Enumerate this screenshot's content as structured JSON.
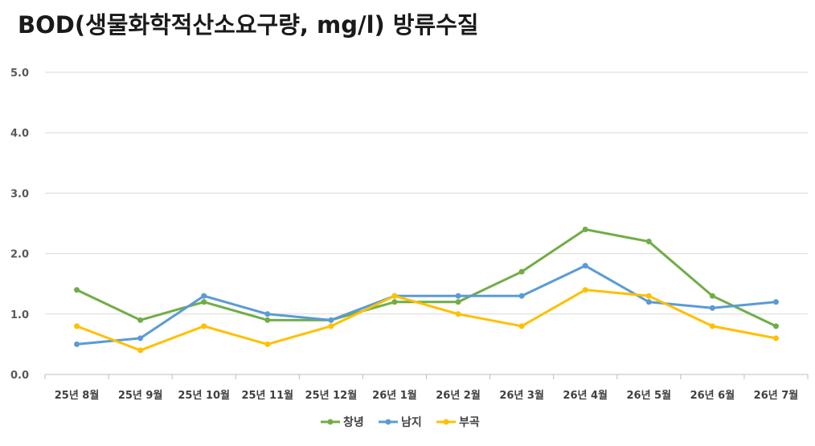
{
  "chart_data": {
    "type": "line",
    "title": "BOD(생물화학적산소요구량, mg/l) 방류수질",
    "categories": [
      "25년 8월",
      "25년 9월",
      "25년 10월",
      "25년 11월",
      "25년 12월",
      "26년 1월",
      "26년 2월",
      "26년 3월",
      "26년 4월",
      "26년 5월",
      "26년 6월",
      "26년 7월"
    ],
    "y_ticks": [
      "0.0",
      "1.0",
      "2.0",
      "3.0",
      "4.0",
      "5.0"
    ],
    "ylim": [
      0,
      5
    ],
    "grid": true,
    "legend_position": "bottom",
    "series": [
      {
        "name": "창녕",
        "color": "#70ad47",
        "values": [
          1.4,
          0.9,
          1.2,
          0.9,
          0.9,
          1.2,
          1.2,
          1.7,
          2.4,
          2.2,
          1.3,
          0.8
        ]
      },
      {
        "name": "남지",
        "color": "#5b9bd5",
        "values": [
          0.5,
          0.6,
          1.3,
          1.0,
          0.9,
          1.3,
          1.3,
          1.3,
          1.8,
          1.2,
          1.1,
          1.2
        ]
      },
      {
        "name": "부곡",
        "color": "#ffc000",
        "values": [
          0.8,
          0.4,
          0.8,
          0.5,
          0.8,
          1.3,
          1.0,
          0.8,
          1.4,
          1.3,
          0.8,
          0.6
        ]
      }
    ]
  }
}
